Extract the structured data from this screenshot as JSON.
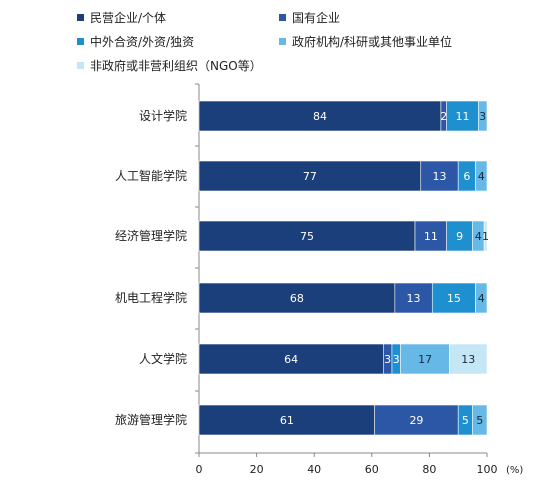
{
  "chart_data": {
    "type": "bar",
    "orientation": "horizontal",
    "stacked": true,
    "categories": [
      "设计学院",
      "人工智能学院",
      "经济管理学院",
      "机电工程学院",
      "人文学院",
      "旅游管理学院"
    ],
    "series": [
      {
        "name": "民营企业/个体",
        "color": "#1a3f7a",
        "label_color": "#ffffff",
        "values": [
          84,
          77,
          75,
          68,
          64,
          61
        ]
      },
      {
        "name": "国有企业",
        "color": "#2c57a6",
        "label_color": "#ffffff",
        "values": [
          2,
          13,
          11,
          13,
          3,
          29
        ]
      },
      {
        "name": "中外合资/外资/独资",
        "color": "#1e8fcf",
        "label_color": "#ffffff",
        "values": [
          11,
          6,
          9,
          15,
          3,
          5
        ]
      },
      {
        "name": "政府机构/科研或其他事业单位",
        "color": "#66b8e6",
        "label_color": "#1a2a3a",
        "values": [
          3,
          4,
          4,
          4,
          17,
          5
        ]
      },
      {
        "name": "非政府或非营利组织（NGO等）",
        "color": "#c5e6f5",
        "label_color": "#1a2a3a",
        "values": [
          0,
          0,
          1,
          0,
          13,
          0
        ]
      }
    ],
    "x_ticks": [
      "0",
      "20",
      "40",
      "60",
      "80",
      "100"
    ],
    "xlim": [
      0,
      100
    ],
    "x_unit": "(%)",
    "legend_position": "top-left",
    "grid": false
  }
}
